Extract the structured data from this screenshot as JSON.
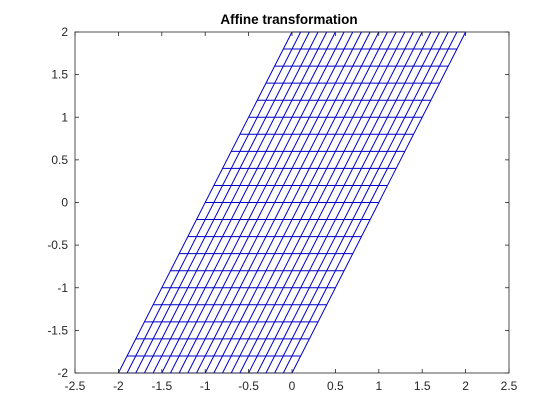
{
  "chart_data": {
    "type": "line",
    "title": "Affine transformation",
    "xlabel": "",
    "ylabel": "",
    "xlim": [
      -2.5,
      2.5
    ],
    "ylim": [
      -2,
      2
    ],
    "xticks": [
      -2.5,
      -2,
      -1.5,
      -1,
      -0.5,
      0,
      0.5,
      1,
      1.5,
      2,
      2.5
    ],
    "yticks": [
      -2,
      -1.5,
      -1,
      -0.5,
      0,
      0.5,
      1,
      1.5,
      2
    ],
    "xtick_labels": [
      "-2.5",
      "-2",
      "-1.5",
      "-1",
      "-0.5",
      "0",
      "0.5",
      "1",
      "1.5",
      "2",
      "2.5"
    ],
    "ytick_labels": [
      "-2",
      "-1.5",
      "-1",
      "-0.5",
      "0",
      "0.5",
      "1",
      "1.5",
      "2"
    ],
    "grid": false,
    "box": true,
    "series": [
      {
        "mesh": "sheared grid",
        "color": "#0000cc",
        "bottom_edge_x": [
          -2,
          0
        ],
        "top_edge_x": [
          0,
          2
        ],
        "y_range": [
          -2,
          2
        ],
        "vertical_lines": 21,
        "horizontal_lines": 21
      }
    ]
  },
  "colors": {
    "axis": "#262626",
    "series": "#0000cc",
    "background": "#ffffff"
  }
}
